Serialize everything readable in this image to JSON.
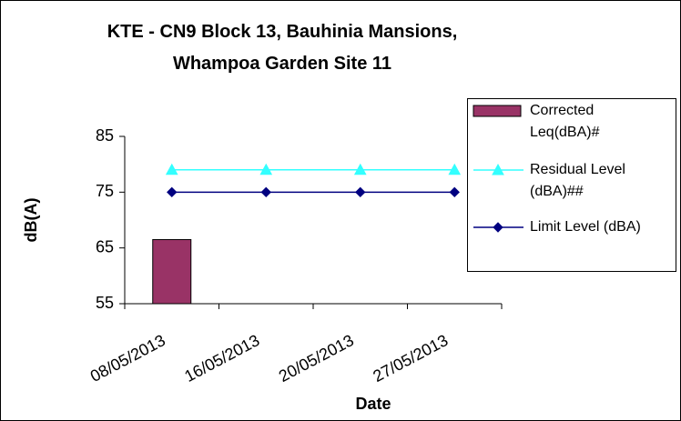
{
  "chart_data": {
    "type": "combo",
    "title": "KTE - CN9 Block 13, Bauhinia Mansions, Whampoa Garden Site 11",
    "xlabel": "Date",
    "ylabel": "dB(A)",
    "categories": [
      "08/05/2013",
      "16/05/2013",
      "20/05/2013",
      "27/05/2013"
    ],
    "series": [
      {
        "name": "Corrected Leq(dBA)#",
        "type": "bar",
        "color": "#993366",
        "values": [
          66.5,
          null,
          null,
          null
        ]
      },
      {
        "name": "Residual Level (dBA)##",
        "type": "line",
        "marker": "triangle",
        "color": "#33ffff",
        "values": [
          79,
          79,
          79,
          79
        ]
      },
      {
        "name": "Limit Level (dBA)",
        "type": "line",
        "marker": "diamond",
        "color": "#000080",
        "values": [
          75,
          75,
          75,
          75
        ]
      }
    ],
    "ylim": [
      55,
      85
    ],
    "yticks": [
      55,
      65,
      75,
      85
    ],
    "grid": false,
    "legend": "right"
  }
}
